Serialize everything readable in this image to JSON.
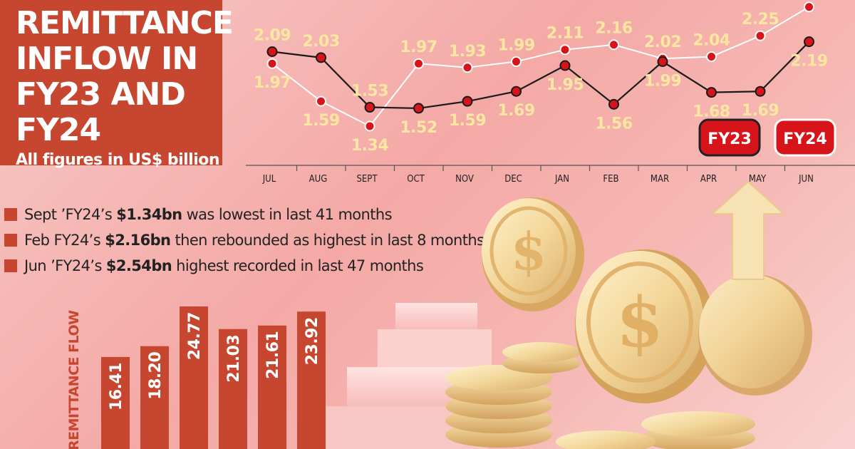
{
  "title_lines": [
    "REMITTANCE",
    "INFLOW IN",
    "FY23 AND FY24"
  ],
  "subtitle": "All figures in US$ billion",
  "colors": {
    "accent": "#c7462f",
    "fy23_line": "#1a1a1a",
    "fy24_line": "#ffffff",
    "dot": "#d7141a",
    "label_fy24": "#fbe7a1",
    "label_fy23": "#fbe7a1"
  },
  "legend": {
    "fy23": "FY23",
    "fy24": "FY24"
  },
  "bullets": [
    {
      "pre": "Sept ’FY24’s ",
      "bold": "$1.34bn",
      "post": " was lowest in last 41 months"
    },
    {
      "pre": "Feb FY24’s ",
      "bold": "$2.16bn",
      "post": " then rebounded as highest in last 8 months"
    },
    {
      "pre": "Jun ’FY24’s ",
      "bold": "$2.54bn",
      "post": " highest recorded in last 47 months"
    }
  ],
  "bar_axis_label": "REMITTANCE FLOW",
  "chart_data": [
    {
      "type": "line",
      "categories": [
        "JUL",
        "AUG",
        "SEPT",
        "OCT",
        "NOV",
        "DEC",
        "JAN",
        "FEB",
        "MAR",
        "APR",
        "MAY",
        "JUN"
      ],
      "series": [
        {
          "name": "FY23",
          "values": [
            2.09,
            2.03,
            1.53,
            1.52,
            1.59,
            1.69,
            1.95,
            1.56,
            1.99,
            1.68,
            1.69,
            2.19
          ]
        },
        {
          "name": "FY24",
          "values": [
            1.97,
            1.59,
            1.34,
            1.97,
            1.93,
            1.99,
            2.11,
            2.16,
            2.02,
            2.04,
            2.25,
            2.54
          ]
        }
      ]
    },
    {
      "type": "bar",
      "ylabel": "REMITTANCE FLOW",
      "values": [
        16.41,
        18.2,
        24.77,
        21.03,
        21.61,
        23.92
      ]
    }
  ]
}
